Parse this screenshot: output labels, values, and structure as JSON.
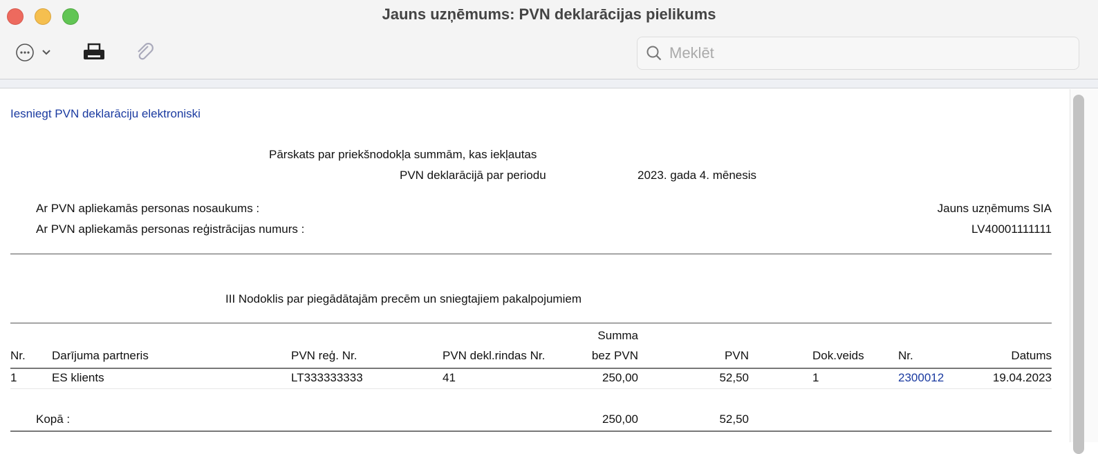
{
  "window": {
    "title": "Jauns uzņēmums: PVN deklarācijas pielikums"
  },
  "toolbar": {
    "more_icon": "ellipsis-circle-icon",
    "print_icon": "printer-icon",
    "attach_icon": "paperclip-icon",
    "search_placeholder": "Meklēt",
    "search_value": ""
  },
  "report": {
    "submit_link": "Iesniegt PVN deklarāciju elektroniski",
    "heading_line1": "Pārskats par priekšnodokļa summām, kas iekļautas",
    "heading_line2": "PVN deklarācijā par periodu",
    "period": "2023. gada 4. mēnesis",
    "name_label": "Ar PVN apliekamās personas nosaukums :",
    "name_value": "Jauns uzņēmums SIA",
    "reg_label": "Ar PVN apliekamās personas reģistrācijas numurs :",
    "reg_value": "LV40001111111",
    "section_title": "III Nodoklis par piegādātajām precēm un sniegtajiem pakalpojumiem",
    "columns": {
      "nr": "Nr.",
      "partner": "Darījuma partneris",
      "reg": "PVN reģ. Nr.",
      "line": "PVN dekl.rindas Nr.",
      "sum_top": "Summa",
      "sum": "bez PVN",
      "vat": "PVN",
      "doc_type": "Dok.veids",
      "doc_nr": "Nr.",
      "date": "Datums"
    },
    "rows": [
      {
        "nr": "1",
        "partner": "ES klients",
        "reg": "LT333333333",
        "line": "41",
        "sum": "250,00",
        "vat": "52,50",
        "doc_type": "1",
        "doc_nr": "2300012",
        "date": "19.04.2023"
      }
    ],
    "total": {
      "label": "Kopā :",
      "sum": "250,00",
      "vat": "52,50"
    }
  },
  "colors": {
    "link": "#1a3aa0"
  }
}
